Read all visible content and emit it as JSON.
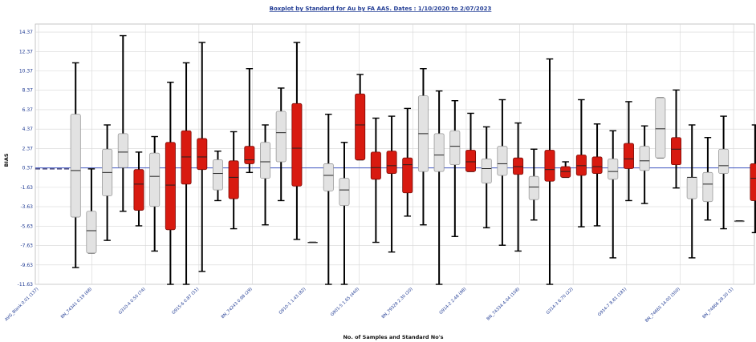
{
  "chart_data": {
    "type": "boxplot",
    "title": "Boxplot by Standard for Au by FA  AAS. Dates : 1/10/2020 to 2/07/2023",
    "xlabel": "No. of Samples and Standard No's",
    "ylabel": "BIAS",
    "y_ticks": [
      14.37,
      12.37,
      10.37,
      8.37,
      6.37,
      4.37,
      2.37,
      0.37,
      -1.63,
      -3.63,
      -5.63,
      -7.63,
      -9.63,
      -11.63
    ],
    "ylim": [
      -11.63,
      15.2
    ],
    "reference_line": 0.37,
    "grid": true,
    "x_tick_labels": [
      "AVG_Blank 0.01 (137)",
      "BN_74341 0.19 (68)",
      "G310-4 0.50 (74)",
      "G915-6 0.87 (51)",
      "BN_74243 0.98 (29)",
      "G910-1 1.43 (82)",
      "G901-5 1.65 (440)",
      "BN_79329 2.30 (20)",
      "G914-2 2.48 (98)",
      "BN_74334 4.04 (108)",
      "G314-3 6.70 (22)",
      "G914-7 8.81 (181)",
      "BN_74665 14.00 (500)",
      "BN_74866 28.20 (1)"
    ],
    "boxes": [
      {
        "color": "gray",
        "min": 0.27,
        "q1": 0.27,
        "median": 0.27,
        "q3": 0.27,
        "max": 0.27
      },
      {
        "color": "gray",
        "min": -9.9,
        "q1": -4.7,
        "median": 0.1,
        "q3": 5.9,
        "max": 11.2
      },
      {
        "color": "gray",
        "min": -8.4,
        "q1": -8.4,
        "median": -6.1,
        "q3": -4.1,
        "max": 0.27
      },
      {
        "color": "gray",
        "min": -7.1,
        "q1": -2.5,
        "median": -0.1,
        "q3": 2.3,
        "max": 4.8
      },
      {
        "color": "gray",
        "min": -4.1,
        "q1": 0.4,
        "median": 2.0,
        "q3": 3.9,
        "max": 14.0
      },
      {
        "color": "red",
        "min": -5.6,
        "q1": -4.0,
        "median": -1.3,
        "q3": 0.2,
        "max": 2.0
      },
      {
        "color": "gray",
        "min": -8.2,
        "q1": -3.6,
        "median": -0.5,
        "q3": 1.9,
        "max": 3.6
      },
      {
        "color": "red",
        "min": -11.63,
        "q1": -6.0,
        "median": -1.4,
        "q3": 3.0,
        "max": 9.2
      },
      {
        "color": "red",
        "min": -11.63,
        "q1": -1.3,
        "median": 1.5,
        "q3": 4.2,
        "max": 11.2
      },
      {
        "color": "red",
        "min": -10.3,
        "q1": 0.2,
        "median": 1.5,
        "q3": 3.4,
        "max": 13.3
      },
      {
        "color": "gray",
        "min": -3.0,
        "q1": -1.9,
        "median": -0.2,
        "q3": 1.2,
        "max": 2.1
      },
      {
        "color": "red",
        "min": -5.9,
        "q1": -2.8,
        "median": -0.6,
        "q3": 1.1,
        "max": 4.1
      },
      {
        "color": "red",
        "min": -0.1,
        "q1": 0.8,
        "median": 1.2,
        "q3": 2.6,
        "max": 10.6
      },
      {
        "color": "gray",
        "min": -5.5,
        "q1": -0.7,
        "median": 1.0,
        "q3": 3.0,
        "max": 4.8
      },
      {
        "color": "gray",
        "min": -3.0,
        "q1": 1.0,
        "median": 4.0,
        "q3": 6.2,
        "max": 8.6
      },
      {
        "color": "red",
        "min": -7.0,
        "q1": -1.5,
        "median": 2.4,
        "q3": 7.0,
        "max": 13.3
      },
      {
        "color": "gray",
        "min": -7.3,
        "q1": -7.3,
        "median": -7.3,
        "q3": -7.3,
        "max": -7.3
      },
      {
        "color": "gray",
        "min": -11.63,
        "q1": -2.0,
        "median": -0.4,
        "q3": 0.8,
        "max": 5.9
      },
      {
        "color": "gray",
        "min": -11.63,
        "q1": -3.5,
        "median": -1.9,
        "q3": -0.7,
        "max": 3.0
      },
      {
        "color": "red",
        "min": 1.2,
        "q1": 1.2,
        "median": 4.8,
        "q3": 8.0,
        "max": 10.0
      },
      {
        "color": "red",
        "min": -7.3,
        "q1": -0.8,
        "median": 0.4,
        "q3": 2.0,
        "max": 5.5
      },
      {
        "color": "red",
        "min": -8.3,
        "q1": -0.2,
        "median": 0.6,
        "q3": 2.1,
        "max": 5.7
      },
      {
        "color": "red",
        "min": -4.6,
        "q1": -2.2,
        "median": 0.7,
        "q3": 1.4,
        "max": 6.5
      },
      {
        "color": "gray",
        "min": -5.5,
        "q1": 0.0,
        "median": 3.9,
        "q3": 7.8,
        "max": 10.6
      },
      {
        "color": "gray",
        "min": -11.63,
        "q1": 0.0,
        "median": 1.7,
        "q3": 3.9,
        "max": 8.3
      },
      {
        "color": "gray",
        "min": -6.7,
        "q1": 0.7,
        "median": 2.6,
        "q3": 4.2,
        "max": 7.3
      },
      {
        "color": "red",
        "min": 0.0,
        "q1": 0.0,
        "median": 1.0,
        "q3": 2.2,
        "max": 6.0
      },
      {
        "color": "gray",
        "min": -5.8,
        "q1": -1.2,
        "median": 0.3,
        "q3": 1.3,
        "max": 4.6
      },
      {
        "color": "gray",
        "min": -7.6,
        "q1": -0.4,
        "median": 0.8,
        "q3": 2.6,
        "max": 7.4
      },
      {
        "color": "red",
        "min": -8.2,
        "q1": -0.3,
        "median": 0.5,
        "q3": 1.4,
        "max": 5.0
      },
      {
        "color": "gray",
        "min": -5.0,
        "q1": -2.9,
        "median": -1.6,
        "q3": -0.5,
        "max": 2.3
      },
      {
        "color": "red",
        "min": -11.63,
        "q1": -1.0,
        "median": 0.2,
        "q3": 2.2,
        "max": 11.6
      },
      {
        "color": "red",
        "min": -0.6,
        "q1": -0.6,
        "median": 0.0,
        "q3": 0.5,
        "max": 1.0
      },
      {
        "color": "red",
        "min": -5.7,
        "q1": -0.4,
        "median": 0.6,
        "q3": 1.7,
        "max": 7.4
      },
      {
        "color": "red",
        "min": -5.6,
        "q1": -0.2,
        "median": 0.5,
        "q3": 1.5,
        "max": 4.9
      },
      {
        "color": "gray",
        "min": -8.9,
        "q1": -0.8,
        "median": 0.0,
        "q3": 1.3,
        "max": 4.2
      },
      {
        "color": "red",
        "min": -3.0,
        "q1": 0.3,
        "median": 1.3,
        "q3": 2.9,
        "max": 7.2
      },
      {
        "color": "gray",
        "min": -3.3,
        "q1": 0.1,
        "median": 1.1,
        "q3": 2.6,
        "max": 4.7
      },
      {
        "color": "gray",
        "min": 1.4,
        "q1": 1.4,
        "median": 4.4,
        "q3": 7.6,
        "max": 7.6
      },
      {
        "color": "red",
        "min": -1.7,
        "q1": 0.7,
        "median": 2.3,
        "q3": 3.5,
        "max": 8.4
      },
      {
        "color": "gray",
        "min": -8.9,
        "q1": -2.8,
        "median": -0.6,
        "q3": -0.6,
        "max": 4.8
      },
      {
        "color": "gray",
        "min": -5.0,
        "q1": -3.1,
        "median": -1.3,
        "q3": -0.1,
        "max": 3.5
      },
      {
        "color": "gray",
        "min": -5.9,
        "q1": -0.2,
        "median": 0.6,
        "q3": 2.3,
        "max": 5.7
      },
      {
        "color": "gray",
        "min": -5.1,
        "q1": -5.1,
        "median": -5.1,
        "q3": -5.1,
        "max": -5.1
      },
      {
        "color": "red",
        "min": -6.3,
        "q1": -3.0,
        "median": -0.7,
        "q3": 0.8,
        "max": 4.8
      }
    ]
  }
}
